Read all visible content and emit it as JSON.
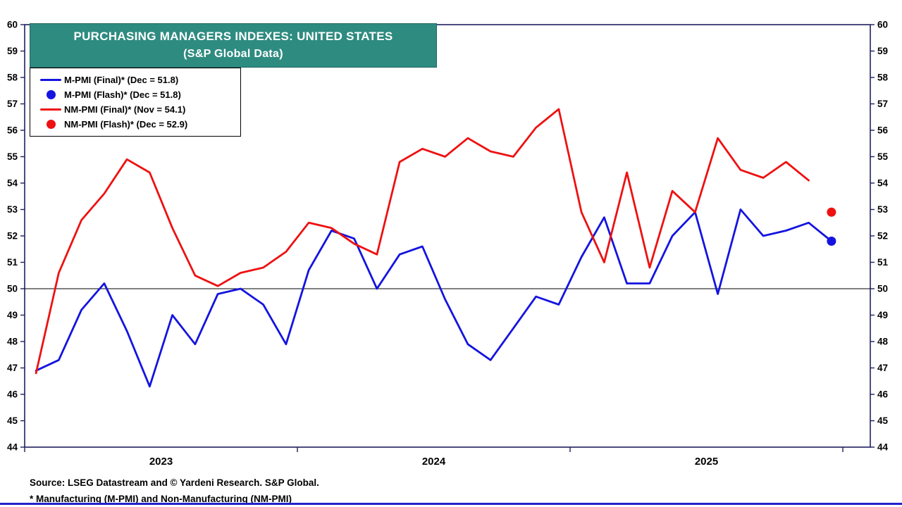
{
  "title": {
    "line1": "PURCHASING MANAGERS INDEXES: UNITED STATES",
    "line2": "(S&P Global Data)",
    "bg_color": "#2E8B80"
  },
  "legend": {
    "items": [
      {
        "key": "m-pmi-final",
        "label": "M-PMI (Final)* (Dec = 51.8)",
        "marker": "line",
        "color": "#1414E0"
      },
      {
        "key": "m-pmi-flash",
        "label": "M-PMI (Flash)* (Dec = 51.8)",
        "marker": "dot",
        "color": "#1414E0"
      },
      {
        "key": "nm-pmi-final",
        "label": "NM-PMI (Final)* (Nov = 54.1)",
        "marker": "line",
        "color": "#EE1111"
      },
      {
        "key": "nm-pmi-flash",
        "label": "NM-PMI (Flash)* (Dec = 52.9)",
        "marker": "dot",
        "color": "#EE1111"
      }
    ]
  },
  "chart_data": {
    "type": "line",
    "title": "Purchasing Managers Indexes: United States (S&P Global Data)",
    "x_start": "2023-01",
    "x_end": "2025-12",
    "x_freq": "monthly",
    "x_year_labels": [
      "2023",
      "2024",
      "2025"
    ],
    "ylim": [
      44,
      60
    ],
    "y_tick_step": 1,
    "y_axis_sides": "both",
    "grid": false,
    "legend_position": "top-left",
    "reference_line": 50,
    "axis_color": "#202060",
    "series": [
      {
        "key": "m-pmi-final-line",
        "name": "M-PMI (Final)",
        "color": "#1414E0",
        "start_month": 0,
        "values": [
          46.9,
          47.3,
          49.2,
          50.2,
          48.4,
          46.3,
          49.0,
          47.9,
          49.8,
          50.0,
          49.4,
          47.9,
          50.7,
          52.2,
          51.9,
          50.0,
          51.3,
          51.6,
          49.6,
          47.9,
          47.3,
          48.5,
          49.7,
          49.4,
          51.2,
          52.7,
          50.2,
          50.2,
          52.0,
          52.9,
          49.8,
          53.0,
          52.0,
          52.2,
          52.5,
          51.8
        ]
      },
      {
        "key": "nm-pmi-final-line",
        "name": "NM-PMI (Final)",
        "color": "#EE1111",
        "start_month": 0,
        "values": [
          46.8,
          50.6,
          52.6,
          53.6,
          54.9,
          54.4,
          52.3,
          50.5,
          50.1,
          50.6,
          50.8,
          51.4,
          52.5,
          52.3,
          51.7,
          51.3,
          54.8,
          55.3,
          55.0,
          55.7,
          55.2,
          55.0,
          56.1,
          56.8,
          52.9,
          51.0,
          54.4,
          50.8,
          53.7,
          52.9,
          55.7,
          54.5,
          54.2,
          54.8,
          54.1
        ]
      }
    ],
    "flash_points": [
      {
        "key": "m-pmi-flash-dot",
        "name": "M-PMI (Flash)",
        "color": "#1414E0",
        "month": "2025-12",
        "month_index": 35,
        "value": 51.8
      },
      {
        "key": "nm-pmi-flash-dot",
        "name": "NM-PMI (Flash)",
        "color": "#EE1111",
        "month": "2025-12",
        "month_index": 35,
        "value": 52.9
      }
    ]
  },
  "footer": {
    "source": "Source: LSEG Datastream and © Yardeni Research. S&P Global.",
    "footnote": "* Manufacturing (M-PMI) and Non-Manufacturing (NM-PMI)",
    "rule_color": "#2222CC"
  }
}
